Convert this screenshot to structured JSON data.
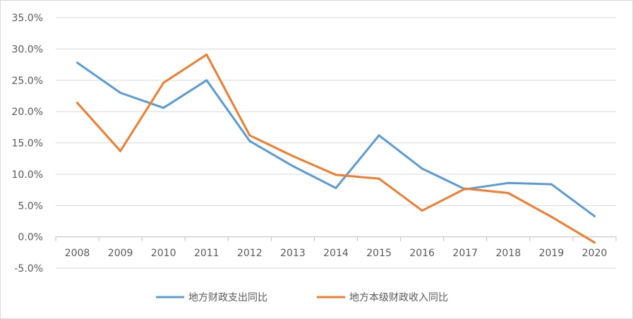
{
  "chart_data": {
    "type": "line",
    "title": "",
    "xlabel": "",
    "ylabel": "",
    "categories": [
      "2008",
      "2009",
      "2010",
      "2011",
      "2012",
      "2013",
      "2014",
      "2015",
      "2016",
      "2017",
      "2018",
      "2019",
      "2020"
    ],
    "ylim": [
      -5,
      35
    ],
    "yticks": [
      -5,
      0,
      5,
      10,
      15,
      20,
      25,
      30,
      35
    ],
    "ytick_labels": [
      "-5.0%",
      "0.0%",
      "5.0%",
      "10.0%",
      "15.0%",
      "20.0%",
      "25.0%",
      "30.0%",
      "35.0%"
    ],
    "grid": true,
    "legend_position": "bottom",
    "series": [
      {
        "name": "地方财政支出同比",
        "color": "#5B9BD5",
        "values": [
          27.8,
          23.0,
          20.6,
          25.0,
          15.3,
          11.3,
          7.8,
          16.2,
          10.9,
          7.6,
          8.6,
          8.4,
          3.3
        ]
      },
      {
        "name": "地方本级财政收入同比",
        "color": "#ED7D31",
        "values": [
          21.4,
          13.7,
          24.6,
          29.1,
          16.2,
          12.9,
          9.9,
          9.3,
          4.2,
          7.7,
          7.0,
          3.2,
          -0.9
        ]
      }
    ]
  }
}
